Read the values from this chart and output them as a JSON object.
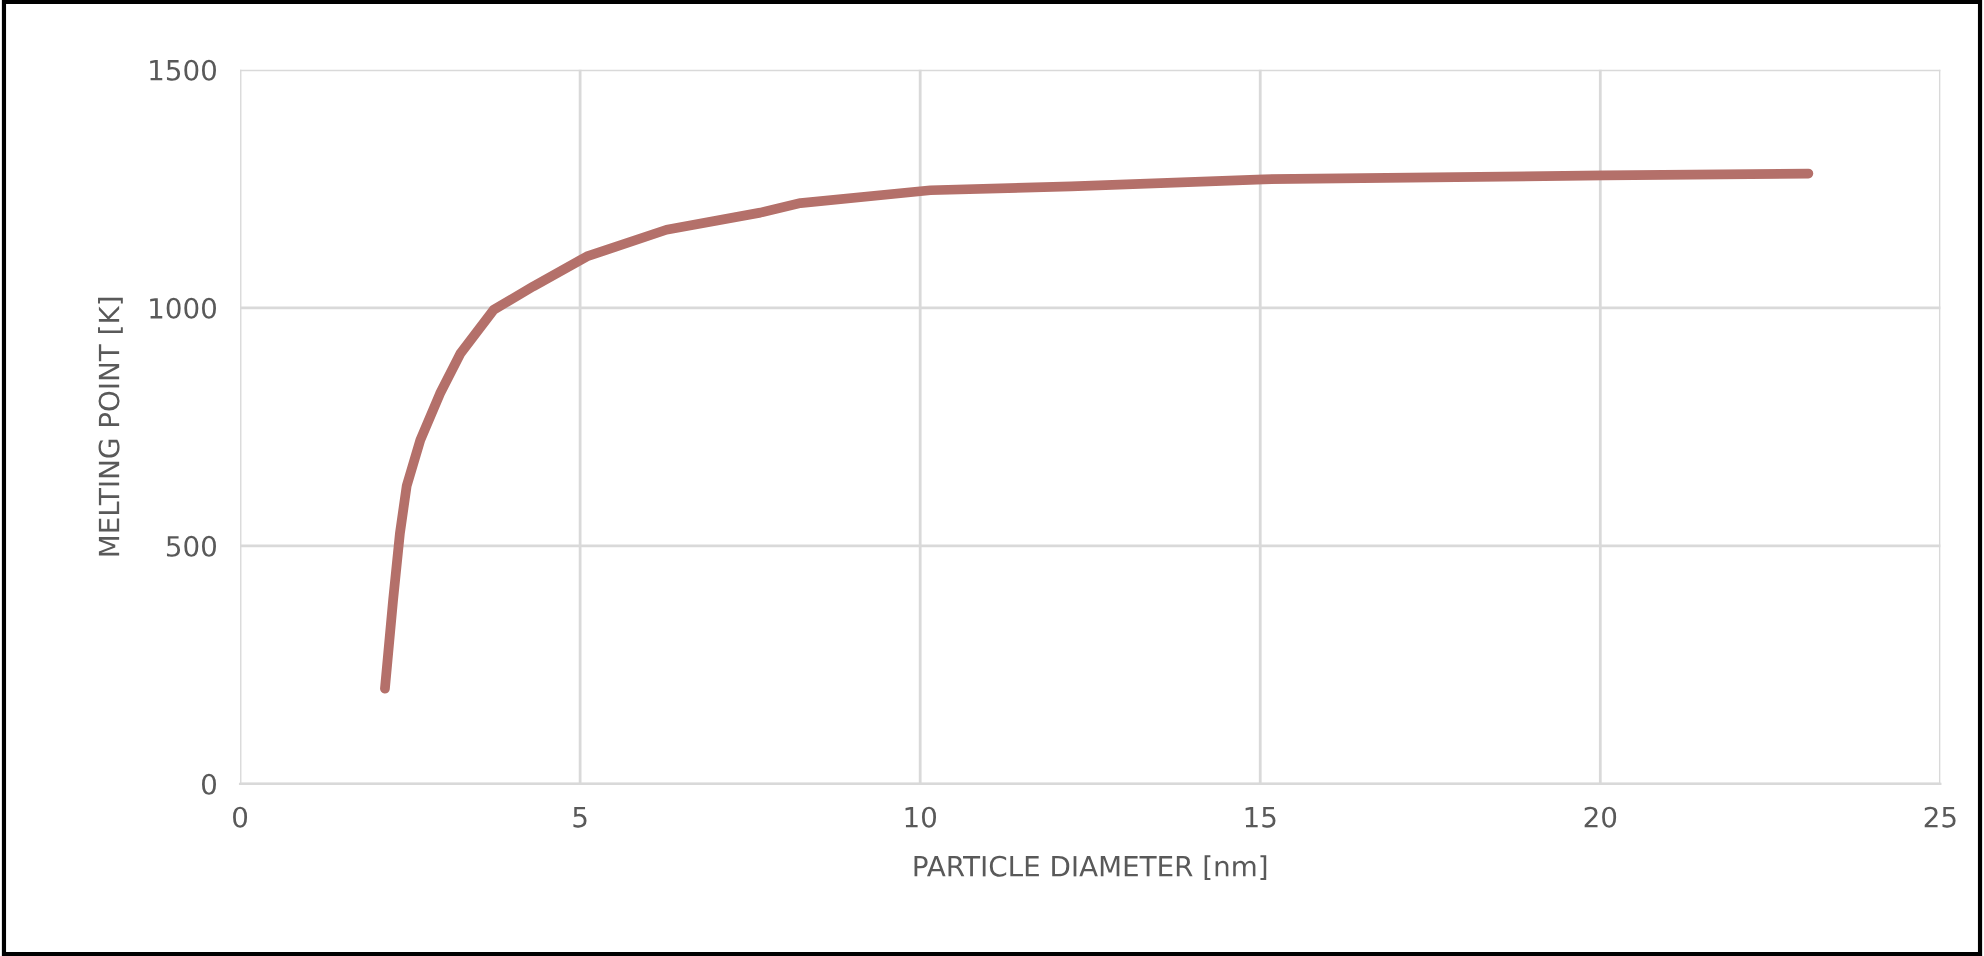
{
  "chart_data": {
    "type": "line",
    "xlabel": "PARTICLE DIAMETER [nm]",
    "ylabel": "MELTING POINT [K]",
    "series": [
      {
        "color": "#b4706a",
        "x": [
          2.13,
          2.25,
          2.35,
          2.45,
          2.65,
          2.94,
          3.24,
          3.73,
          4.31,
          5.1,
          6.27,
          7.65,
          8.24,
          10.15,
          12.22,
          15.05,
          20.06,
          23.06
        ],
        "values": [
          200,
          386,
          526,
          626,
          722,
          820,
          904,
          996,
          1045,
          1108,
          1164,
          1200,
          1220,
          1247,
          1255,
          1270,
          1278,
          1282
        ]
      }
    ],
    "xlim": [
      0,
      25
    ],
    "xticks": [
      0,
      5,
      10,
      15,
      20,
      25
    ],
    "ylim": [
      0,
      1500
    ],
    "yticks": [
      0,
      500,
      1000,
      1500
    ],
    "grid": true,
    "marker": "none",
    "line_style": "solid"
  }
}
